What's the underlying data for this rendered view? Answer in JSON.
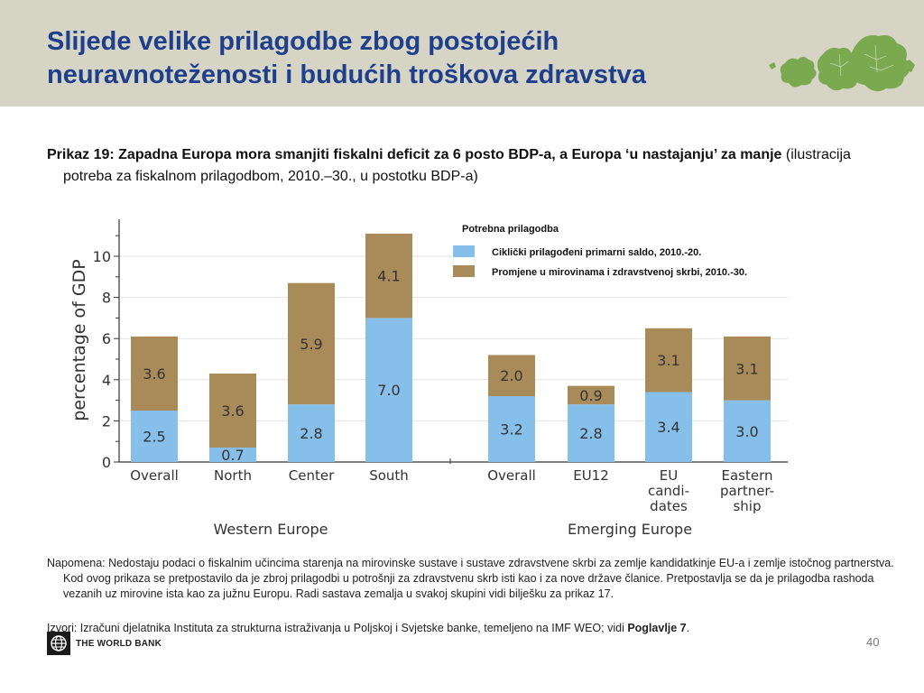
{
  "slide": {
    "title_line1": "Slijede velike prilagodbe zbog postojećih",
    "title_line2": "neuravnoteženosti i budućih troškova zdravstva",
    "caption_bold1": "Prikaz 19: Zapadna Europa mora smanjiti fiskalni deficit za 6 posto BDP-a, a Europa ‘u nastajanju’ za manje",
    "caption_rest": " (ilustracija potreba za fiskalnom prilagodbom, 2010.–30., u postotku BDP-a)",
    "note": "Napomena: Nedostaju podaci o fiskalnim učincima starenja na mirovinske sustave i sustave zdravstvene skrbi za zemlje kandidatkinje EU-a i zemlje istočnog partnerstva. Kod ovog prikaza se pretpostavilo da je zbroj prilagodbi u potrošnji za zdravstvenu skrb isti kao i za nove države članice. Pretpostavlja se da je prilagodba rashoda vezanih uz mirovine ista kao za južnu Europu. Radi sastava zemalja u svakoj skupini vidi bilješku za prikaz 17.",
    "source_text": "Izvori: Izračuni djelatnika Instituta za strukturna istraživanja u Poljskoj i Svjetske banke, temeljeno na IMF WEO; vidi ",
    "source_bold": "Poglavlje 7",
    "source_end": ".",
    "logo_text": "THE WORLD BANK",
    "page_number": "40"
  },
  "chart_data": {
    "type": "bar",
    "stacked": true,
    "ylabel": "percentage of GDP",
    "ylim": [
      0,
      11.5
    ],
    "yticks": [
      0,
      2,
      4,
      6,
      8,
      10
    ],
    "legend_title": "Potrebna prilagodba",
    "legend_position": "top-right",
    "groups": [
      {
        "label": "Western Europe",
        "categories": [
          "Overall",
          "North",
          "Center",
          "South"
        ]
      },
      {
        "label": "Emerging Europe",
        "categories": [
          "Overall",
          "EU12",
          "EU candi- dates",
          "Eastern partner- ship"
        ]
      }
    ],
    "category_lines": [
      [
        "Overall"
      ],
      [
        "North"
      ],
      [
        "Center"
      ],
      [
        "South"
      ],
      [
        "Overall"
      ],
      [
        "EU12"
      ],
      [
        "EU",
        "candi-",
        "dates"
      ],
      [
        "Eastern",
        "partner-",
        "ship"
      ]
    ],
    "series": [
      {
        "name": "Ciklički prilagođeni primarni saldo, 2010.-20.",
        "color": "#86bfe9",
        "values": [
          2.5,
          0.7,
          2.8,
          7.0,
          3.2,
          2.8,
          3.4,
          3.0
        ]
      },
      {
        "name": "Promjene u mirovinama i zdravstvenoj skrbi, 2010.-30.",
        "color": "#a98b5a",
        "values": [
          3.6,
          3.6,
          5.9,
          4.1,
          2.0,
          0.9,
          3.1,
          3.1
        ]
      }
    ]
  }
}
